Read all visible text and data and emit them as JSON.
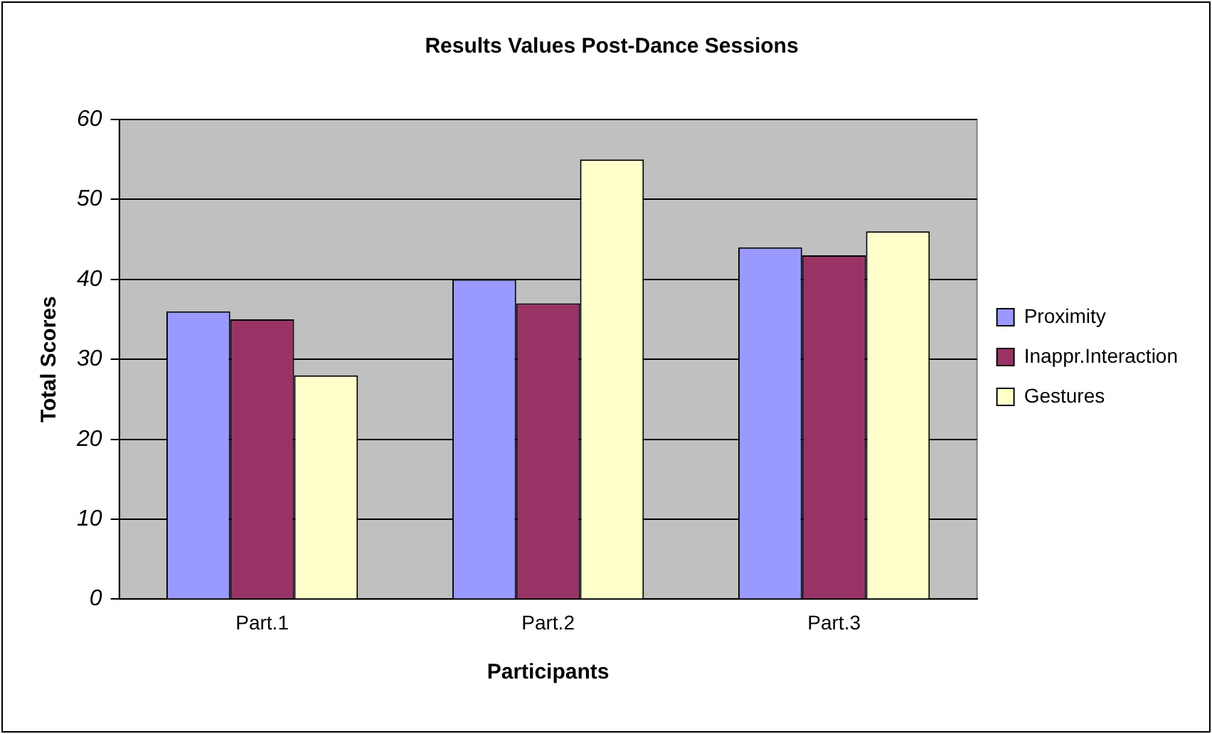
{
  "chart_data": {
    "type": "bar",
    "title": "Results Values Post-Dance Sessions",
    "xlabel": "Participants",
    "ylabel": "Total Scores",
    "categories": [
      "Part.1",
      "Part.2",
      "Part.3"
    ],
    "series": [
      {
        "name": "Proximity",
        "color": "#9999ff",
        "values": [
          36,
          40,
          44
        ]
      },
      {
        "name": "Inappr.Interaction",
        "color": "#993366",
        "values": [
          35,
          37,
          43
        ]
      },
      {
        "name": "Gestures",
        "color": "#ffffcc",
        "values": [
          28,
          55,
          46
        ]
      }
    ],
    "ylim": [
      0,
      60
    ],
    "yticks": [
      0,
      10,
      20,
      30,
      40,
      50,
      60
    ],
    "grid": "y",
    "legend": "right"
  }
}
